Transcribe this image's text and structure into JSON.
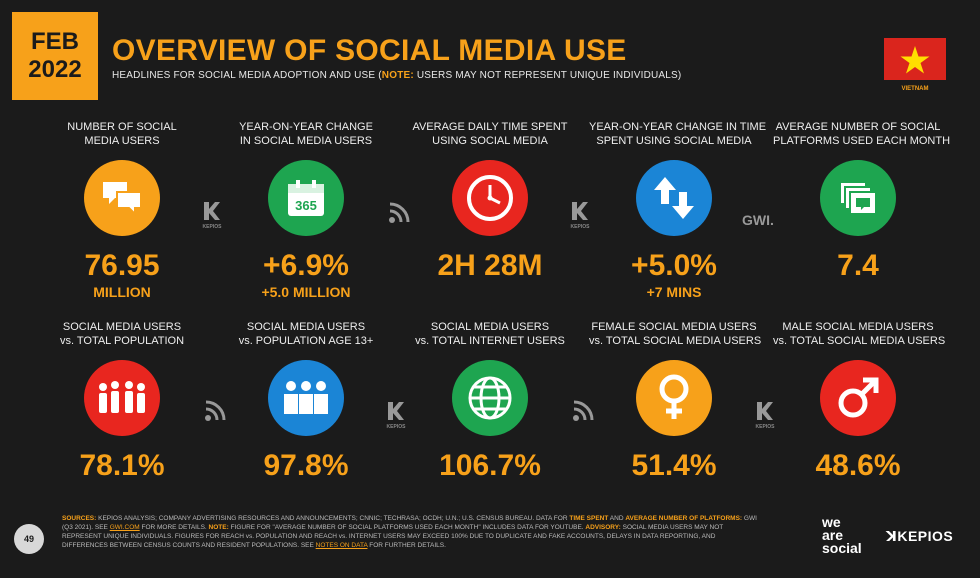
{
  "header": {
    "month": "FEB",
    "year": "2022",
    "title": "OVERVIEW OF SOCIAL MEDIA USE",
    "subtitle_main": "HEADLINES FOR SOCIAL MEDIA ADOPTION AND USE (",
    "subtitle_note": "NOTE:",
    "subtitle_rest": " USERS MAY NOT REPRESENT UNIQUE INDIVIDUALS)",
    "country": "VIETNAM"
  },
  "colors": {
    "accent": "#f7a11a",
    "orange": "#f7a11a",
    "green": "#1ea550",
    "red": "#e8261f",
    "blue": "#1b85d6",
    "background": "#1b1b1b"
  },
  "row1": [
    {
      "label1": "NUMBER OF SOCIAL",
      "label2": "MEDIA USERS",
      "value": "76.95",
      "sub": "MILLION",
      "icon": "chat-bubbles-icon"
    },
    {
      "label1": "YEAR-ON-YEAR CHANGE",
      "label2": "IN SOCIAL MEDIA USERS",
      "value": "+6.9%",
      "sub": "+5.0 MILLION",
      "icon": "calendar-365-icon",
      "icon_text": "365"
    },
    {
      "label1": "AVERAGE DAILY TIME SPENT",
      "label2": "USING SOCIAL MEDIA",
      "value": "2H 28M",
      "sub": "",
      "icon": "clock-icon"
    },
    {
      "label1": "YEAR-ON-YEAR CHANGE IN TIME",
      "label2": "SPENT USING SOCIAL MEDIA",
      "value": "+5.0%",
      "sub": "+7 MINS",
      "icon": "up-down-arrows-icon"
    },
    {
      "label1": "AVERAGE NUMBER OF SOCIAL",
      "label2": "PLATFORMS USED EACH MONTH",
      "value": "7.4",
      "sub": "",
      "icon": "stacked-windows-icon"
    }
  ],
  "row2": [
    {
      "label1": "SOCIAL MEDIA USERS",
      "label2": "vs. TOTAL POPULATION",
      "value": "78.1%",
      "icon": "population-group-icon"
    },
    {
      "label1": "SOCIAL MEDIA USERS",
      "label2": "vs. POPULATION AGE 13+",
      "value": "97.8%",
      "icon": "adults-group-icon"
    },
    {
      "label1": "SOCIAL MEDIA USERS",
      "label2": "vs. TOTAL INTERNET USERS",
      "value": "106.7%",
      "icon": "globe-icon"
    },
    {
      "label1": "FEMALE SOCIAL MEDIA USERS",
      "label2": "vs. TOTAL SOCIAL MEDIA USERS",
      "value": "51.4%",
      "icon": "female-symbol-icon"
    },
    {
      "label1": "MALE SOCIAL MEDIA USERS",
      "label2": "vs. TOTAL SOCIAL MEDIA USERS",
      "value": "48.6%",
      "icon": "male-symbol-icon"
    }
  ],
  "separators": {
    "kepios": "KEPIOS",
    "gwi": "GWI."
  },
  "footer": {
    "page": "49",
    "sources_label": "SOURCES:",
    "sources_text": " KEPIOS ANALYSIS; COMPANY ADVERTISING RESOURCES AND ANNOUNCEMENTS; CNNIC; TECHRASA; OCDH; U.N.; U.S. CENSUS BUREAU. DATA FOR ",
    "time_spent": "TIME SPENT",
    "and": " AND ",
    "avg_platforms": "AVERAGE NUMBER OF PLATFORMS:",
    "gwi_text": " GWI (Q3 2021). SEE ",
    "gwi_link": "GWI.COM",
    "more_details": " FOR MORE DETAILS. ",
    "note_label": "NOTE:",
    "note_text": " FIGURE FOR \"AVERAGE NUMBER OF SOCIAL PLATFORMS USED EACH MONTH\" INCLUDES DATA FOR YOUTUBE. ",
    "advisory_label": "ADVISORY:",
    "advisory_text": " SOCIAL MEDIA USERS MAY NOT REPRESENT UNIQUE INDIVIDUALS. FIGURES FOR REACH vs. POPULATION AND REACH vs. INTERNET USERS MAY EXCEED 100% DUE TO DUPLICATE AND FAKE ACCOUNTS, DELAYS IN DATA REPORTING, AND DIFFERENCES BETWEEN CENSUS COUNTS AND RESIDENT POPULATIONS. SEE ",
    "notes_link": "NOTES ON DATA",
    "further": " FOR FURTHER DETAILS.",
    "brand1_l1": "we",
    "brand1_l2": "are",
    "brand1_l3": "social",
    "brand2": "KEPIOS"
  }
}
